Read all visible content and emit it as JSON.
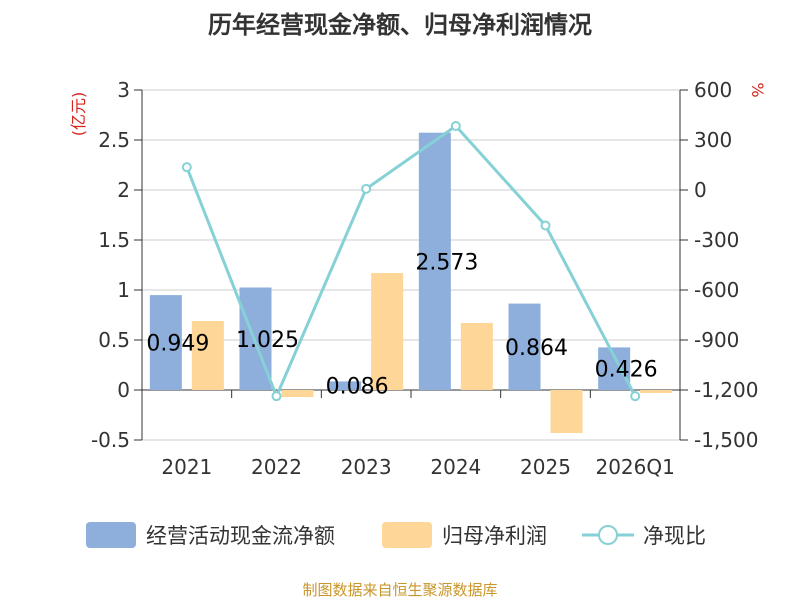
{
  "chart_data": {
    "type": "bar",
    "title": "历年经营现金净额、归母净利润情况",
    "categories": [
      "2021",
      "2022",
      "2023",
      "2024",
      "2025",
      "2026Q1"
    ],
    "series": [
      {
        "name": "经营活动现金流净额",
        "kind": "bar",
        "axis": "left",
        "color": "#8eaedb",
        "values": [
          0.949,
          1.025,
          0.086,
          2.573,
          0.864,
          0.426
        ],
        "labels": [
          "0.949",
          "1.025",
          "0.086",
          "2.573",
          "0.864",
          "0.426"
        ]
      },
      {
        "name": "归母净利润",
        "kind": "bar",
        "axis": "left",
        "color": "#fdd698",
        "values": [
          0.69,
          -0.07,
          1.17,
          0.67,
          -0.43,
          -0.03
        ]
      },
      {
        "name": "净现比",
        "kind": "line",
        "axis": "right",
        "color": "#86d1d6",
        "values": [
          137,
          -1237,
          7,
          384,
          -213,
          -1237
        ]
      }
    ],
    "left_axis": {
      "unit": "(亿元)",
      "ylim": [
        -0.5,
        3
      ],
      "ticks": [
        "-0.5",
        "0",
        "0.5",
        "1",
        "1.5",
        "2",
        "2.5",
        "3"
      ]
    },
    "right_axis": {
      "unit": "%",
      "ylim": [
        -1500,
        600
      ],
      "ticks": [
        "-1,500",
        "-1,200",
        "-900",
        "-600",
        "-300",
        "0",
        "300",
        "600"
      ]
    },
    "legend": [
      "经营活动现金流净额",
      "归母净利润",
      "净现比"
    ],
    "source": "制图数据来自恒生聚源数据库"
  }
}
